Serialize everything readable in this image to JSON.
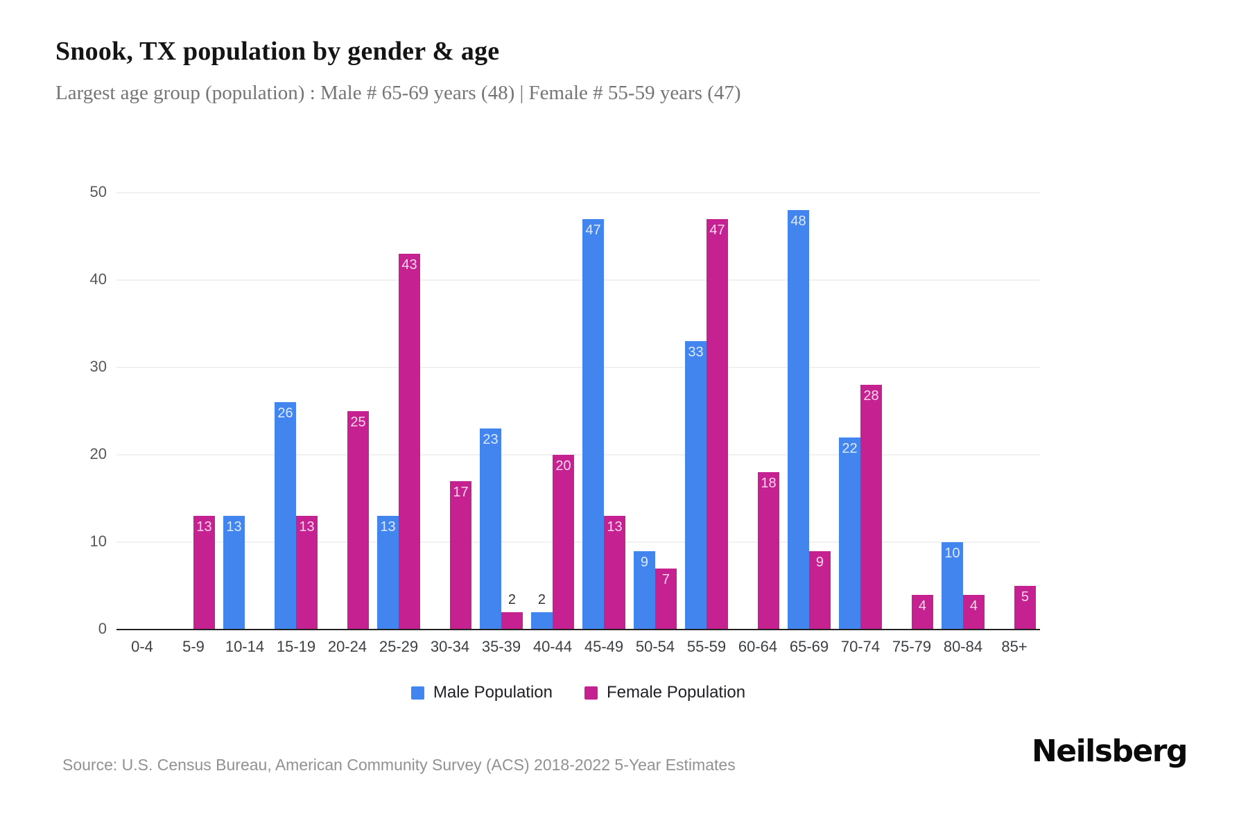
{
  "header": {
    "title": "Snook, TX population by gender & age",
    "subtitle": "Largest age group (population) : Male # 65-69 years (48) | Female # 55-59 years (47)"
  },
  "chart_data": {
    "type": "bar",
    "title": "Snook, TX population by gender & age",
    "categories": [
      "0-4",
      "5-9",
      "10-14",
      "15-19",
      "20-24",
      "25-29",
      "30-34",
      "35-39",
      "40-44",
      "45-49",
      "50-54",
      "55-59",
      "60-64",
      "65-69",
      "70-74",
      "75-79",
      "80-84",
      "85+"
    ],
    "series": [
      {
        "name": "Male Population",
        "key": "male",
        "color": "#4285ee",
        "values": [
          0,
          0,
          13,
          26,
          0,
          13,
          0,
          23,
          2,
          47,
          9,
          33,
          0,
          48,
          22,
          0,
          10,
          0
        ]
      },
      {
        "name": "Female Population",
        "key": "female",
        "color": "#c52191",
        "values": [
          0,
          13,
          0,
          13,
          25,
          43,
          17,
          2,
          20,
          13,
          7,
          47,
          18,
          9,
          28,
          4,
          4,
          5
        ]
      }
    ],
    "xlabel": "",
    "ylabel": "",
    "ylim": [
      0,
      50
    ],
    "yticks": [
      0,
      10,
      20,
      30,
      40,
      50
    ],
    "grid": true,
    "legend_position": "bottom"
  },
  "footer": {
    "source": "Source: U.S. Census Bureau, American Community Survey (ACS) 2018-2022 5-Year Estimates",
    "brand": "Neilsberg"
  }
}
